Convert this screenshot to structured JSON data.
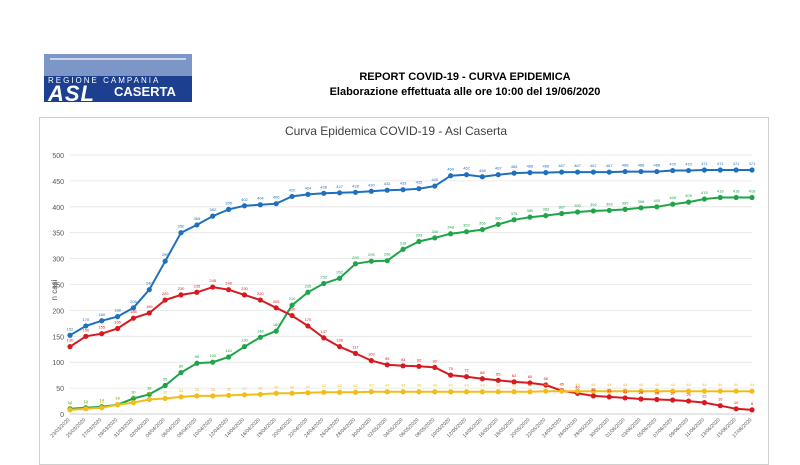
{
  "logo": {
    "region_text": "REGIONE CAMPANIA",
    "brand": "ASL",
    "place": "CASERTA"
  },
  "header": {
    "title": "REPORT COVID-19 - CURVA EPIDEMICA",
    "subtitle": "Elaborazione effettuata alle ore 10:00 del 19/06/2020"
  },
  "colors": {
    "blue": "#1f6fbf",
    "green": "#1ea54a",
    "red": "#d71920",
    "yellow": "#f2bd18"
  },
  "chart_data": {
    "type": "line",
    "title": "Curva Epidemica COVID-19 - Asl Caserta",
    "xlabel": "",
    "ylabel": "n casi",
    "ylim": [
      0,
      500
    ],
    "yticks": [
      0,
      50,
      100,
      150,
      200,
      250,
      300,
      350,
      400,
      450,
      500
    ],
    "grid": true,
    "x": [
      "23/03/2020",
      "25/03/2020",
      "27/03/2020",
      "29/03/2020",
      "31/03/2020",
      "02/04/2020",
      "04/04/2020",
      "06/04/2020",
      "08/04/2020",
      "10/04/2020",
      "12/04/2020",
      "14/04/2020",
      "16/04/2020",
      "18/04/2020",
      "20/04/2020",
      "22/04/2020",
      "24/04/2020",
      "26/04/2020",
      "28/04/2020",
      "30/04/2020",
      "02/05/2020",
      "04/05/2020",
      "06/05/2020",
      "08/05/2020",
      "10/05/2020",
      "12/05/2020",
      "14/05/2020",
      "16/05/2020",
      "18/05/2020",
      "20/05/2020",
      "22/05/2020",
      "24/05/2020",
      "26/05/2020",
      "28/05/2020",
      "30/05/2020",
      "01/06/2020",
      "03/06/2020",
      "05/06/2020",
      "07/06/2020",
      "09/06/2020",
      "11/06/2020",
      "13/06/2020",
      "15/06/2020",
      "17/06/2020"
    ],
    "series": [
      {
        "color": "blue",
        "values": [
          152,
          170,
          180,
          188,
          205,
          240,
          295,
          350,
          365,
          382,
          395,
          402,
          404,
          406,
          420,
          424,
          426,
          427,
          428,
          430,
          432,
          433,
          435,
          440,
          460,
          462,
          458,
          462,
          465,
          466,
          466,
          467,
          467,
          467,
          467,
          468,
          468,
          468,
          470,
          470,
          471,
          471,
          471,
          471
        ]
      },
      {
        "color": "green",
        "values": [
          10,
          12,
          14,
          18,
          30,
          38,
          55,
          80,
          98,
          100,
          110,
          130,
          148,
          160,
          210,
          235,
          252,
          262,
          290,
          295,
          296,
          318,
          333,
          340,
          348,
          352,
          356,
          366,
          375,
          380,
          383,
          387,
          390,
          392,
          393,
          395,
          398,
          400,
          405,
          409,
          415,
          418,
          418,
          418
        ]
      },
      {
        "color": "red",
        "values": [
          130,
          150,
          155,
          165,
          185,
          195,
          220,
          230,
          235,
          245,
          240,
          230,
          220,
          205,
          190,
          170,
          147,
          130,
          117,
          103,
          95,
          93,
          92,
          90,
          75,
          72,
          68,
          65,
          62,
          60,
          56,
          45,
          40,
          35,
          33,
          31,
          29,
          28,
          27,
          25,
          22,
          16,
          10,
          8
        ]
      },
      {
        "color": "yellow",
        "values": [
          8,
          10,
          12,
          18,
          22,
          28,
          30,
          33,
          35,
          35,
          36,
          37,
          38,
          40,
          40,
          41,
          42,
          42,
          42,
          43,
          43,
          43,
          43,
          43,
          43,
          43,
          43,
          43,
          43,
          43,
          44,
          44,
          44,
          44,
          44,
          44,
          44,
          44,
          44,
          44,
          44,
          44,
          44,
          44
        ]
      }
    ]
  }
}
